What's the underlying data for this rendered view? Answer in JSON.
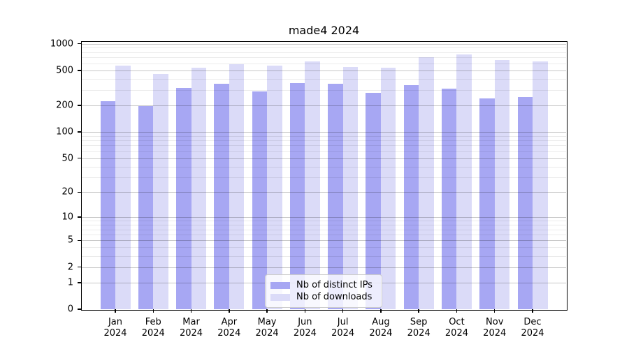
{
  "title": "made4 2024",
  "chart_data": {
    "type": "bar",
    "title": "made4 2024",
    "categories": [
      "Jan",
      "Feb",
      "Mar",
      "Apr",
      "May",
      "Jun",
      "Jul",
      "Aug",
      "Sep",
      "Oct",
      "Nov",
      "Dec"
    ],
    "category_year": "2024",
    "series": [
      {
        "name": "Nb of distinct IPs",
        "color": "#a7a7f3",
        "values": [
          225,
          195,
          315,
          350,
          290,
          356,
          352,
          280,
          340,
          310,
          240,
          250
        ]
      },
      {
        "name": "Nb of downloads",
        "color": "#dbdbf8",
        "values": [
          566,
          455,
          535,
          585,
          565,
          630,
          550,
          540,
          700,
          760,
          655,
          630
        ]
      }
    ],
    "yscale": "log1p",
    "ylim": [
      0,
      1000
    ],
    "yticks": [
      0,
      1,
      2,
      5,
      10,
      20,
      50,
      100,
      200,
      500,
      1000
    ],
    "minor_yticks": [
      3,
      4,
      6,
      7,
      8,
      9,
      30,
      40,
      60,
      70,
      80,
      90,
      300,
      400,
      600,
      700,
      800,
      900
    ],
    "grid": true,
    "legend_position": "lower center"
  }
}
